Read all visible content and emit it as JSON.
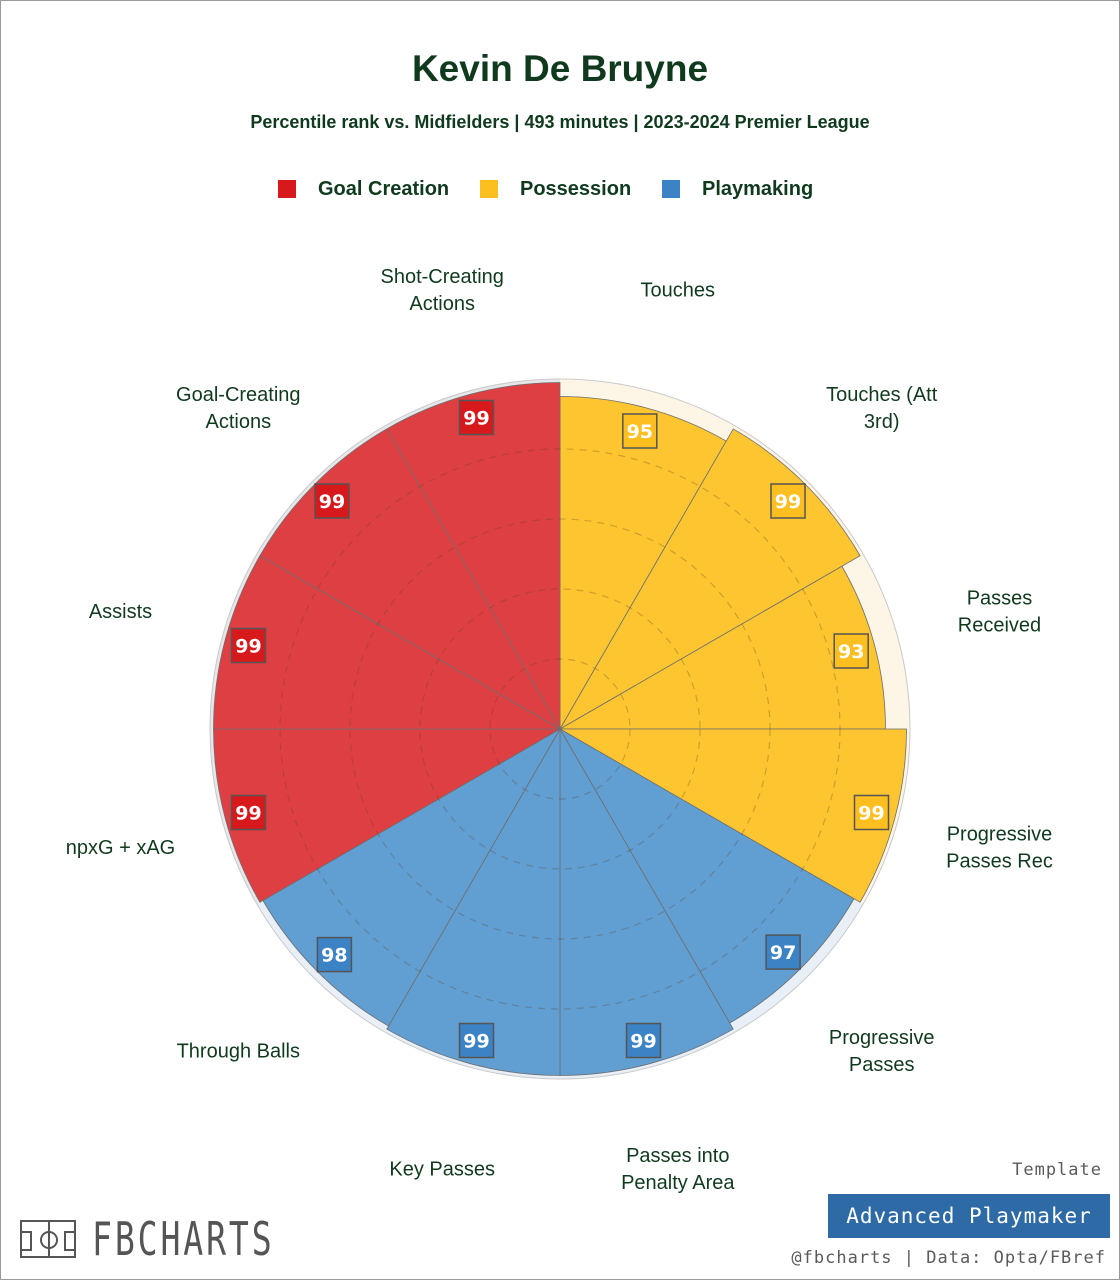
{
  "header": {
    "title": "Kevin De Bruyne",
    "subtitle": "Percentile rank vs. Midfielders | 493 minutes | 2023-2024 Premier League"
  },
  "legend": {
    "items": [
      {
        "label": "Goal Creation",
        "color": "#d7191c"
      },
      {
        "label": "Possession",
        "color": "#fdbf1f"
      },
      {
        "label": "Playmaking",
        "color": "#3b83c4"
      }
    ]
  },
  "chart_data": {
    "type": "polar-bar",
    "title": "Kevin De Bruyne",
    "subtitle": "Percentile rank vs. Midfielders | 493 minutes | 2023-2024 Premier League",
    "rlim": [
      0,
      100
    ],
    "legend_position": "top",
    "categories": [
      {
        "label": "Touches",
        "value": 95,
        "group": "Possession"
      },
      {
        "label": "Touches (Att 3rd)",
        "value": 99,
        "group": "Possession"
      },
      {
        "label": "Passes Received",
        "value": 93,
        "group": "Possession"
      },
      {
        "label": "Progressive Passes Rec",
        "value": 99,
        "group": "Possession"
      },
      {
        "label": "Progressive Passes",
        "value": 97,
        "group": "Playmaking"
      },
      {
        "label": "Passes into Penalty Area",
        "value": 99,
        "group": "Playmaking"
      },
      {
        "label": "Key Passes",
        "value": 99,
        "group": "Playmaking"
      },
      {
        "label": "Through Balls",
        "value": 98,
        "group": "Playmaking"
      },
      {
        "label": "npxG + xAG",
        "value": 99,
        "group": "Goal Creation"
      },
      {
        "label": "Assists",
        "value": 99,
        "group": "Goal Creation"
      },
      {
        "label": "Goal-Creating Actions",
        "value": 99,
        "group": "Goal Creation"
      },
      {
        "label": "Shot-Creating Actions",
        "value": 99,
        "group": "Goal Creation"
      }
    ],
    "display_labels": [
      [
        "Touches"
      ],
      [
        "Touches (Att",
        "3rd)"
      ],
      [
        "Passes",
        "Received"
      ],
      [
        "Progressive",
        "Passes Rec"
      ],
      [
        "Progressive",
        "Passes"
      ],
      [
        "Passes into",
        "Penalty Area"
      ],
      [
        "Key Passes"
      ],
      [
        "Through Balls"
      ],
      [
        "npxG + xAG"
      ],
      [
        "Assists"
      ],
      [
        "Goal-Creating",
        "Actions"
      ],
      [
        "Shot-Creating",
        "Actions"
      ]
    ],
    "group_colors": {
      "Goal Creation": {
        "fill": "#de3f43",
        "badge": "#d7191c",
        "track": "#e7e7ea"
      },
      "Possession": {
        "fill": "#fdc530",
        "badge": "#fdbf1f",
        "track": "#fdf6e6"
      },
      "Playmaking": {
        "fill": "#619ed2",
        "badge": "#3b83c4",
        "track": "#e8eff7"
      }
    },
    "grid": "dashed rings"
  },
  "footer": {
    "logo_text": "FBCHARTS",
    "template_label": "Template",
    "template_name": "Advanced Playmaker",
    "credit": "@fbcharts | Data: Opta/FBref"
  }
}
